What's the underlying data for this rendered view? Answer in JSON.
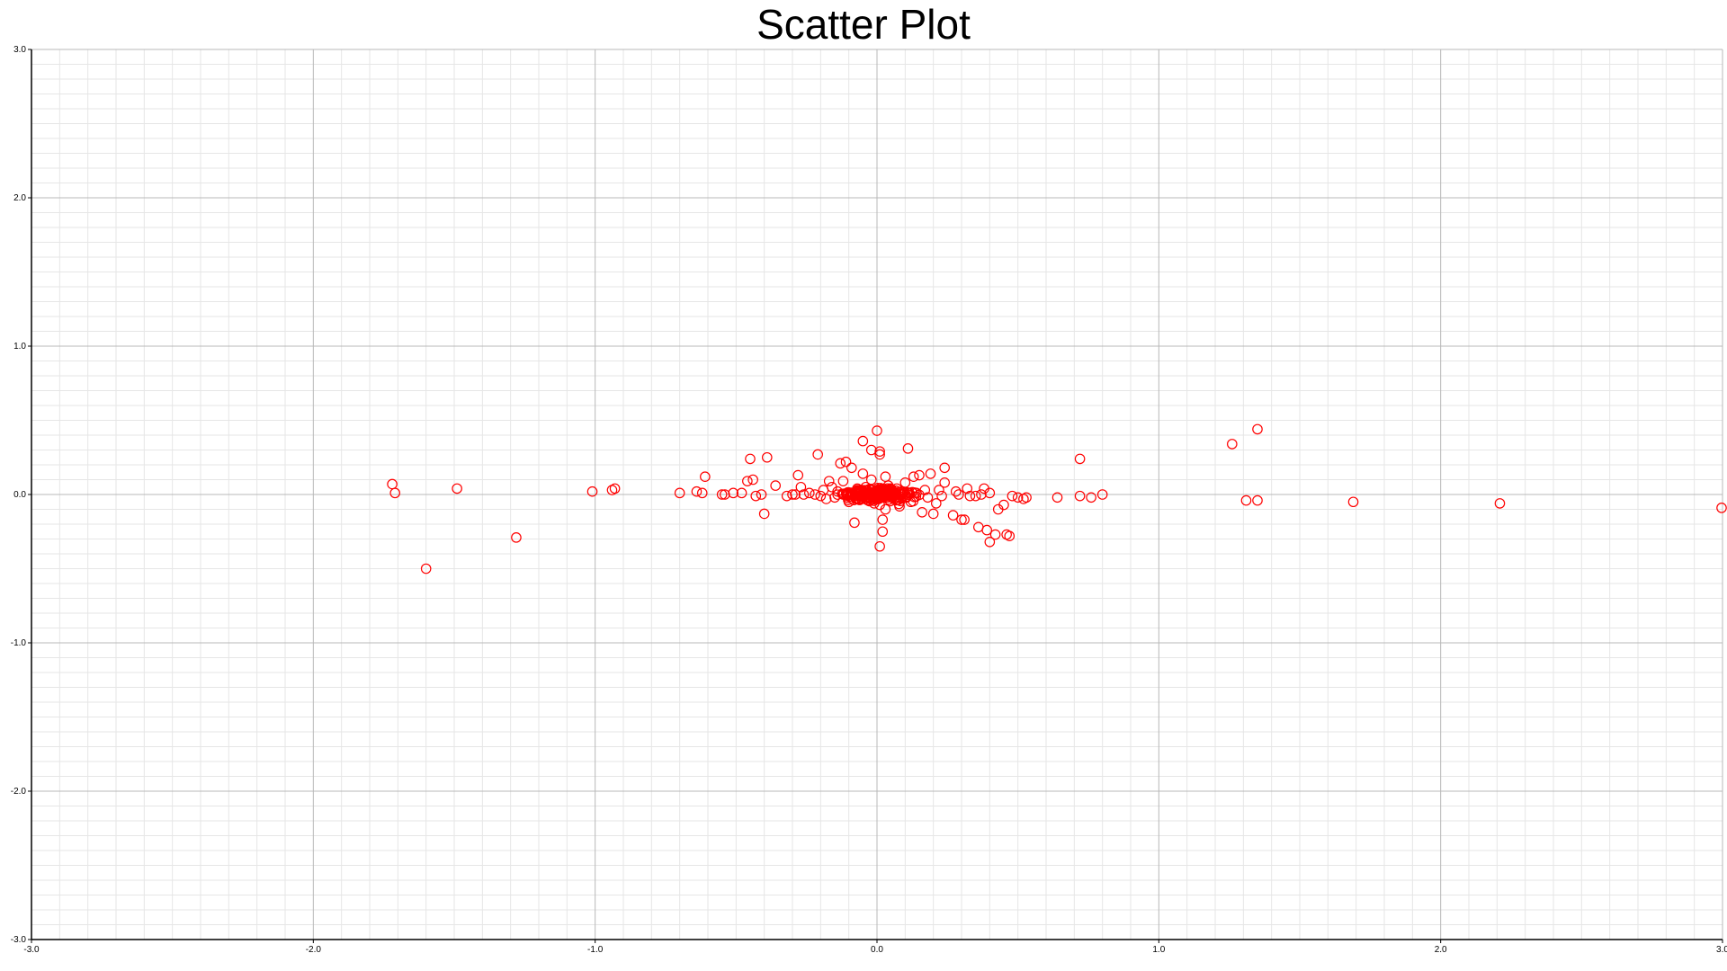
{
  "chart_data": {
    "type": "scatter",
    "title": "Scatter Plot",
    "xlabel": "",
    "ylabel": "",
    "xlim": [
      -3.0,
      3.0
    ],
    "ylim": [
      -3.0,
      3.0
    ],
    "x_ticks": [
      "-3.0",
      "-2.0",
      "-1.0",
      "0.0",
      "1.0",
      "2.0",
      "3.0"
    ],
    "y_ticks": [
      "3.0",
      "2.0",
      "1.0",
      "0.0",
      "-1.0",
      "-2.0",
      "-3.0"
    ],
    "grid": true,
    "marker": "open-circle",
    "marker_color": "#ff0000",
    "points": [
      [
        -1.72,
        0.07
      ],
      [
        -1.71,
        0.01
      ],
      [
        -1.49,
        0.04
      ],
      [
        -1.6,
        -0.5
      ],
      [
        -1.28,
        -0.29
      ],
      [
        -1.01,
        0.02
      ],
      [
        -0.94,
        0.03
      ],
      [
        -0.93,
        0.04
      ],
      [
        -0.7,
        0.01
      ],
      [
        -0.64,
        0.02
      ],
      [
        -0.62,
        0.01
      ],
      [
        -0.61,
        0.12
      ],
      [
        -0.55,
        0.0
      ],
      [
        -0.54,
        0.0
      ],
      [
        -0.51,
        0.01
      ],
      [
        -0.48,
        0.01
      ],
      [
        -0.46,
        0.09
      ],
      [
        -0.45,
        0.24
      ],
      [
        -0.44,
        0.1
      ],
      [
        -0.43,
        -0.01
      ],
      [
        -0.41,
        0.0
      ],
      [
        -0.4,
        -0.13
      ],
      [
        -0.39,
        0.25
      ],
      [
        -0.36,
        0.06
      ],
      [
        -0.32,
        -0.01
      ],
      [
        -0.3,
        0.0
      ],
      [
        -0.29,
        0.0
      ],
      [
        -0.28,
        0.13
      ],
      [
        -0.27,
        0.05
      ],
      [
        -0.26,
        0.0
      ],
      [
        -0.24,
        0.01
      ],
      [
        -0.22,
        0.0
      ],
      [
        -0.21,
        0.27
      ],
      [
        -0.2,
        -0.01
      ],
      [
        -0.19,
        0.03
      ],
      [
        -0.18,
        -0.03
      ],
      [
        -0.17,
        0.09
      ],
      [
        -0.16,
        0.05
      ],
      [
        -0.15,
        -0.02
      ],
      [
        -0.14,
        0.02
      ],
      [
        -0.13,
        0.21
      ],
      [
        -0.12,
        0.09
      ],
      [
        -0.11,
        0.22
      ],
      [
        -0.1,
        -0.05
      ],
      [
        -0.09,
        0.18
      ],
      [
        -0.08,
        -0.19
      ],
      [
        -0.07,
        0.03
      ],
      [
        -0.06,
        -0.01
      ],
      [
        -0.05,
        0.36
      ],
      [
        -0.05,
        0.14
      ],
      [
        -0.04,
        0.05
      ],
      [
        -0.03,
        -0.02
      ],
      [
        -0.02,
        0.1
      ],
      [
        -0.02,
        0.3
      ],
      [
        -0.01,
        -0.06
      ],
      [
        0.0,
        0.43
      ],
      [
        0.0,
        0.02
      ],
      [
        0.0,
        -0.03
      ],
      [
        0.01,
        0.29
      ],
      [
        0.01,
        0.27
      ],
      [
        0.01,
        -0.07
      ],
      [
        0.01,
        -0.35
      ],
      [
        0.02,
        -0.25
      ],
      [
        0.02,
        -0.17
      ],
      [
        0.03,
        -0.1
      ],
      [
        0.03,
        0.12
      ],
      [
        0.04,
        0.06
      ],
      [
        0.05,
        0.01
      ],
      [
        0.06,
        -0.03
      ],
      [
        0.07,
        0.04
      ],
      [
        0.08,
        -0.08
      ],
      [
        0.09,
        0.02
      ],
      [
        0.1,
        0.08
      ],
      [
        0.11,
        0.31
      ],
      [
        0.12,
        -0.05
      ],
      [
        0.13,
        0.12
      ],
      [
        0.14,
        0.01
      ],
      [
        0.15,
        0.13
      ],
      [
        0.16,
        -0.12
      ],
      [
        0.17,
        0.03
      ],
      [
        0.18,
        -0.02
      ],
      [
        0.19,
        0.14
      ],
      [
        0.2,
        -0.13
      ],
      [
        0.21,
        -0.06
      ],
      [
        0.22,
        0.03
      ],
      [
        0.23,
        -0.01
      ],
      [
        0.24,
        0.08
      ],
      [
        0.24,
        0.18
      ],
      [
        0.27,
        -0.14
      ],
      [
        0.28,
        0.02
      ],
      [
        0.29,
        0.0
      ],
      [
        0.3,
        -0.17
      ],
      [
        0.31,
        -0.17
      ],
      [
        0.32,
        0.04
      ],
      [
        0.33,
        -0.01
      ],
      [
        0.35,
        -0.01
      ],
      [
        0.36,
        -0.22
      ],
      [
        0.37,
        0.0
      ],
      [
        0.38,
        0.04
      ],
      [
        0.39,
        -0.24
      ],
      [
        0.4,
        0.01
      ],
      [
        0.4,
        -0.32
      ],
      [
        0.42,
        -0.27
      ],
      [
        0.43,
        -0.1
      ],
      [
        0.45,
        -0.07
      ],
      [
        0.46,
        -0.27
      ],
      [
        0.47,
        -0.28
      ],
      [
        0.48,
        -0.01
      ],
      [
        0.5,
        -0.02
      ],
      [
        0.52,
        -0.03
      ],
      [
        0.53,
        -0.02
      ],
      [
        0.64,
        -0.02
      ],
      [
        0.72,
        0.24
      ],
      [
        0.72,
        -0.01
      ],
      [
        0.76,
        -0.02
      ],
      [
        0.8,
        0.0
      ],
      [
        1.26,
        0.34
      ],
      [
        1.31,
        -0.04
      ],
      [
        1.35,
        0.44
      ],
      [
        1.35,
        -0.04
      ],
      [
        1.69,
        -0.05
      ],
      [
        2.21,
        -0.06
      ],
      [
        3.0,
        -0.09
      ]
    ]
  }
}
